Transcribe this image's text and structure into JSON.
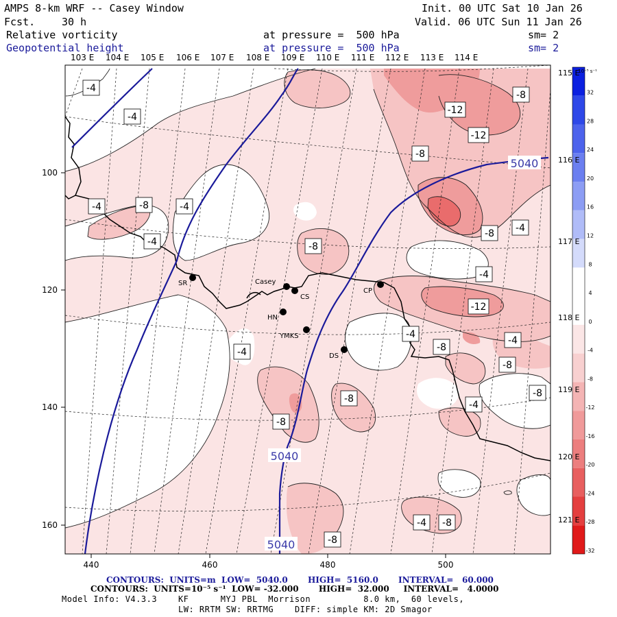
{
  "header": {
    "model": "AMPS 8-km WRF -- Casey Window",
    "fcst_label": "Fcst.",
    "fcst_value": "30 h",
    "init": "Init. 00 UTC Sat 10 Jan 26",
    "valid": "Valid. 06 UTC Sun 11 Jan 26",
    "field1": "Relative vorticity",
    "field2": "Geopotential height",
    "press1": "at pressure =  500 hPa",
    "press2": "at pressure =  500 hPa",
    "sm1": "sm= 2",
    "sm2": "sm= 2"
  },
  "lon_labels": [
    "103 E",
    "104 E",
    "105 E",
    "106 E",
    "107 E",
    "108 E",
    "109 E",
    "110 E",
    "111 E",
    "112 E",
    "113 E",
    "114 E"
  ],
  "lat_labels": [
    "115 E",
    "116 E",
    "117 E",
    "118 E",
    "119 E",
    "120 E",
    "121 E"
  ],
  "x_ticks": [
    "440",
    "460",
    "480",
    "500"
  ],
  "y_ticks": [
    "100",
    "120",
    "140",
    "160"
  ],
  "stations": [
    {
      "name": "SR"
    },
    {
      "name": "Casey"
    },
    {
      "name": "CS"
    },
    {
      "name": "HN"
    },
    {
      "name": "YMKS"
    },
    {
      "name": "DS"
    },
    {
      "name": "CP"
    }
  ],
  "vort_labels": [
    "-4",
    "-4",
    "-8",
    "-12",
    "-12",
    "-8",
    "-4",
    "-8",
    "-4",
    "-4",
    "-8",
    "-8",
    "-4",
    "-4",
    "-12",
    "-4",
    "-8",
    "-4",
    "-8",
    "-4",
    "-8",
    "-8",
    "-8",
    "-4",
    "-8",
    "-4",
    "-8"
  ],
  "height_labels": [
    "5040",
    "5040",
    "5040"
  ],
  "colorbar": {
    "unit": "10⁻⁵ s⁻¹",
    "levels": [
      "32",
      "28",
      "24",
      "20",
      "16",
      "12",
      "8",
      "4",
      "0",
      "-4",
      "-8",
      "-12",
      "-16",
      "-20",
      "-24",
      "-28",
      "-32"
    ],
    "colors": [
      "#0b20e0",
      "#2e48e8",
      "#4d63ec",
      "#6b7ff0",
      "#8c9df4",
      "#b0bcf8",
      "#d4dbfb",
      "#ffffff",
      "#ffffff",
      "#fbe6e6",
      "#f8d0d0",
      "#f4b4b4",
      "#f09a9a",
      "#ec7e7e",
      "#e85f5f",
      "#e43f3f",
      "#e01a1a"
    ]
  },
  "footer": {
    "line1": "CONTOURS:  UNITS=m  LOW=  5040.0       HIGH=  5160.0       INTERVAL=   60.000",
    "line2": "CONTOURS:  UNITS=10⁻⁵ s⁻¹  LOW= -32.000       HIGH=  32.000     INTERVAL=   4.0000",
    "line3": "Model Info: V4.3.3    KF      MYJ PBL  Morrison          8.0 km,  60 levels,",
    "line4": "LW: RRTM SW: RRTMG    DIFF: simple KM: 2D Smagor"
  }
}
